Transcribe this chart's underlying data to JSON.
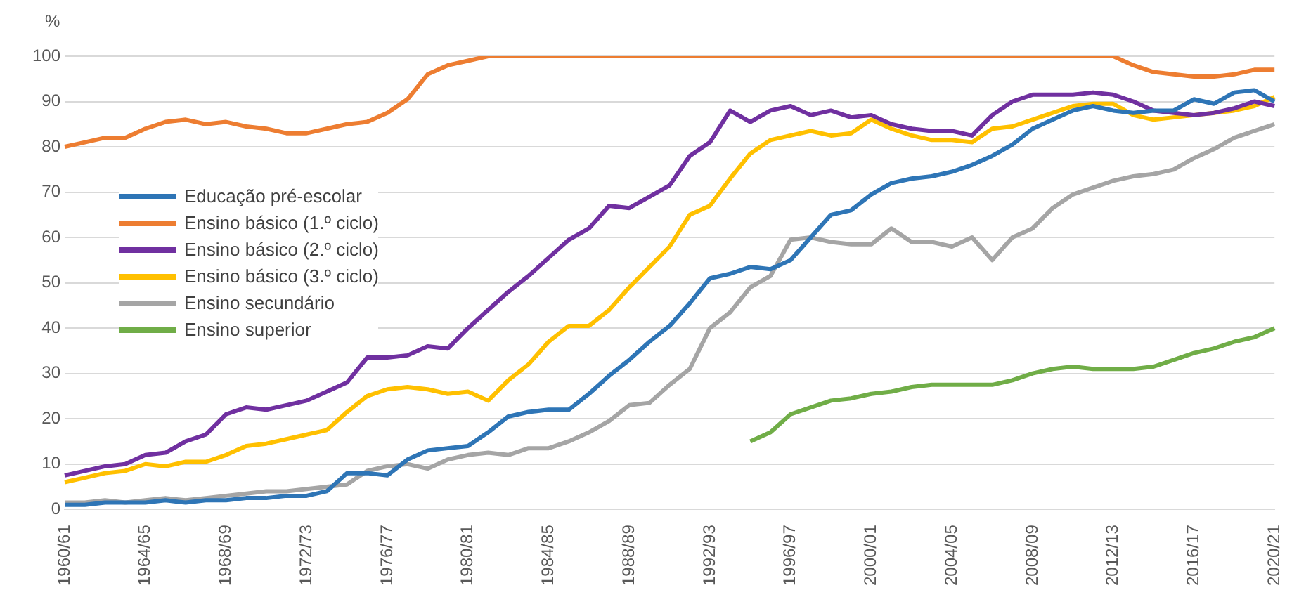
{
  "chart_data": {
    "type": "line",
    "ylabel": "%",
    "categories": [
      "1960/61",
      null,
      null,
      null,
      "1964/65",
      null,
      null,
      null,
      "1968/69",
      null,
      null,
      null,
      "1972/73",
      null,
      null,
      null,
      "1976/77",
      null,
      null,
      null,
      "1980/81",
      null,
      null,
      null,
      "1984/85",
      null,
      null,
      null,
      "1988/89",
      null,
      null,
      null,
      "1992/93",
      null,
      null,
      null,
      "1996/97",
      null,
      null,
      null,
      "2000/01",
      null,
      null,
      null,
      "2004/05",
      null,
      null,
      null,
      "2008/09",
      null,
      null,
      null,
      "2012/13",
      null,
      null,
      null,
      "2016/17",
      null,
      null,
      null,
      "2020/21"
    ],
    "series": [
      {
        "name": "Educação pré-escolar",
        "color": "#2e75b6",
        "values": [
          1,
          1,
          1.5,
          1.5,
          1.5,
          2,
          1.5,
          2,
          2,
          2.5,
          2.5,
          3,
          3,
          4,
          8,
          8,
          7.5,
          11,
          13,
          13.5,
          14,
          17,
          20.5,
          21.5,
          22,
          22,
          25.5,
          29.5,
          33,
          37,
          40.5,
          45.5,
          51,
          52,
          53.5,
          53,
          55,
          60,
          65,
          66,
          69.5,
          72,
          73,
          73.5,
          74.5,
          76,
          78,
          80.5,
          84,
          86,
          88,
          89,
          88,
          87.5,
          88,
          88,
          90.5,
          89.5,
          92,
          92.5,
          90
        ]
      },
      {
        "name": "Ensino básico (1.º ciclo)",
        "color": "#ed7d31",
        "values": [
          80,
          81,
          82,
          82,
          84,
          85.5,
          86,
          85,
          85.5,
          84.5,
          84,
          83,
          83,
          84,
          85,
          85.5,
          87.5,
          90.5,
          96,
          98,
          99,
          100,
          100,
          100,
          100,
          100,
          100,
          100,
          100,
          100,
          100,
          100,
          100,
          100,
          100,
          100,
          100,
          100,
          100,
          100,
          100,
          100,
          100,
          100,
          100,
          100,
          100,
          100,
          100,
          100,
          100,
          100,
          100,
          98,
          96.5,
          96,
          95.5,
          95.5,
          96,
          97,
          97
        ]
      },
      {
        "name": "Ensino básico (2.º ciclo)",
        "color": "#7030a0",
        "values": [
          7.5,
          8.5,
          9.5,
          10,
          12,
          12.5,
          15,
          16.5,
          21,
          22.5,
          22,
          23,
          24,
          26,
          28,
          33.5,
          33.5,
          34,
          36,
          35.5,
          40,
          44,
          48,
          51.5,
          55.5,
          59.5,
          62,
          67,
          66.5,
          69,
          71.5,
          78,
          81,
          88,
          85.5,
          88,
          89,
          87,
          88,
          86.5,
          87,
          85,
          84,
          83.5,
          83.5,
          82.5,
          87,
          90,
          91.5,
          91.5,
          91.5,
          92,
          91.5,
          90,
          88,
          87.5,
          87,
          87.5,
          88.5,
          90,
          89
        ]
      },
      {
        "name": "Ensino básico (3.º ciclo)",
        "color": "#ffc000",
        "values": [
          6,
          7,
          8,
          8.5,
          10,
          9.5,
          10.5,
          10.5,
          12,
          14,
          14.5,
          15.5,
          16.5,
          17.5,
          21.5,
          25,
          26.5,
          27,
          26.5,
          25.5,
          26,
          24,
          28.5,
          32,
          37,
          40.5,
          40.5,
          44,
          49,
          53.5,
          58,
          65,
          67,
          73,
          78.5,
          81.5,
          82.5,
          83.5,
          82.5,
          83,
          86,
          84,
          82.5,
          81.5,
          81.5,
          81,
          84,
          84.5,
          86,
          87.5,
          89,
          89.5,
          89.5,
          87,
          86,
          86.5,
          87,
          87.5,
          88,
          89,
          91
        ]
      },
      {
        "name": "Ensino secundário",
        "color": "#a5a5a5",
        "values": [
          1.5,
          1.5,
          2,
          1.5,
          2,
          2.5,
          2,
          2.5,
          3,
          3.5,
          4,
          4,
          4.5,
          5,
          5.5,
          8.5,
          9.5,
          10,
          9,
          11,
          12,
          12.5,
          12,
          13.5,
          13.5,
          15,
          17,
          19.5,
          23,
          23.5,
          27.5,
          31,
          40,
          43.5,
          49,
          51.5,
          59.5,
          60,
          59,
          58.5,
          58.5,
          62,
          59,
          59,
          58,
          60,
          55,
          60,
          62,
          66.5,
          69.5,
          71,
          72.5,
          73.5,
          74,
          75,
          77.5,
          79.5,
          82,
          83.5,
          85
        ]
      },
      {
        "name": "Ensino superior",
        "color": "#70ad47",
        "values": [
          null,
          null,
          null,
          null,
          null,
          null,
          null,
          null,
          null,
          null,
          null,
          null,
          null,
          null,
          null,
          null,
          null,
          null,
          null,
          null,
          null,
          null,
          null,
          null,
          null,
          null,
          null,
          null,
          null,
          null,
          null,
          null,
          null,
          null,
          15,
          17,
          21,
          22.5,
          24,
          24.5,
          25.5,
          26,
          27,
          27.5,
          27.5,
          27.5,
          27.5,
          28.5,
          30,
          31,
          31.5,
          31,
          31,
          31,
          31.5,
          33,
          34.5,
          35.5,
          37,
          38,
          40
        ]
      }
    ],
    "ylim": [
      0,
      100
    ],
    "yticks": [
      0,
      10,
      20,
      30,
      40,
      50,
      60,
      70,
      80,
      90,
      100
    ],
    "grid": "y",
    "legend": "left",
    "marker": "none",
    "line_style": "solid"
  }
}
